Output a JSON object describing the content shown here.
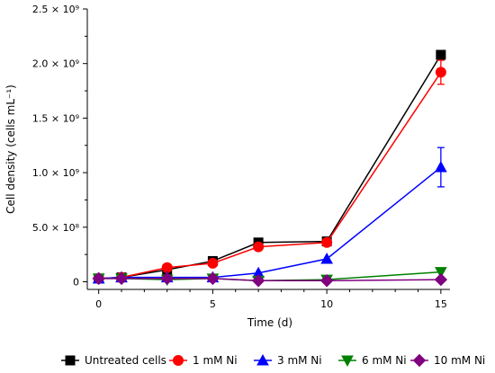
{
  "chart_data": {
    "type": "line",
    "title": "",
    "xlabel": "Time (d)",
    "ylabel": "Cell density (cells mL⁻¹)",
    "xlim": [
      -0.5,
      15.4
    ],
    "ylim": [
      -70000000,
      2500000000
    ],
    "x_ticks": [
      0,
      5,
      10,
      15
    ],
    "y_ticks": [
      {
        "value": 0,
        "label": "0"
      },
      {
        "value": 500000000,
        "label": "5.0 × 10⁸"
      },
      {
        "value": 1000000000,
        "label": "1.0 × 10⁹"
      },
      {
        "value": 1500000000,
        "label": "1.5 × 10⁹"
      },
      {
        "value": 2000000000,
        "label": "2.0 × 10⁹"
      },
      {
        "value": 2500000000,
        "label": "2.5 × 10⁹"
      }
    ],
    "legend_position": "bottom",
    "x": [
      0,
      1,
      3,
      5,
      7,
      10,
      15
    ],
    "series": [
      {
        "name": "Untreated cells",
        "color": "#000000",
        "marker": "square",
        "values": [
          30000000,
          40000000,
          110000000,
          190000000,
          360000000,
          370000000,
          2080000000
        ],
        "errors": [
          0,
          0,
          0,
          0,
          0,
          0,
          0
        ]
      },
      {
        "name": "1 mM Ni",
        "color": "#ff0000",
        "marker": "circle",
        "values": [
          30000000,
          40000000,
          130000000,
          170000000,
          320000000,
          360000000,
          1920000000
        ],
        "errors": [
          0,
          0,
          0,
          0,
          0,
          0,
          110000000
        ]
      },
      {
        "name": "3 mM Ni",
        "color": "#0000ff",
        "marker": "triangle-up",
        "values": [
          30000000,
          40000000,
          40000000,
          40000000,
          80000000,
          210000000,
          1050000000
        ],
        "errors": [
          0,
          0,
          0,
          0,
          0,
          0,
          180000000
        ]
      },
      {
        "name": "6 mM Ni",
        "color": "#008000",
        "marker": "triangle-down",
        "values": [
          30000000,
          30000000,
          20000000,
          30000000,
          10000000,
          20000000,
          90000000
        ],
        "errors": [
          0,
          0,
          0,
          0,
          0,
          0,
          0
        ]
      },
      {
        "name": "10 mM Ni",
        "color": "#800080",
        "marker": "diamond",
        "values": [
          30000000,
          30000000,
          30000000,
          30000000,
          10000000,
          10000000,
          20000000
        ],
        "errors": [
          0,
          0,
          0,
          0,
          0,
          0,
          0
        ]
      }
    ]
  }
}
